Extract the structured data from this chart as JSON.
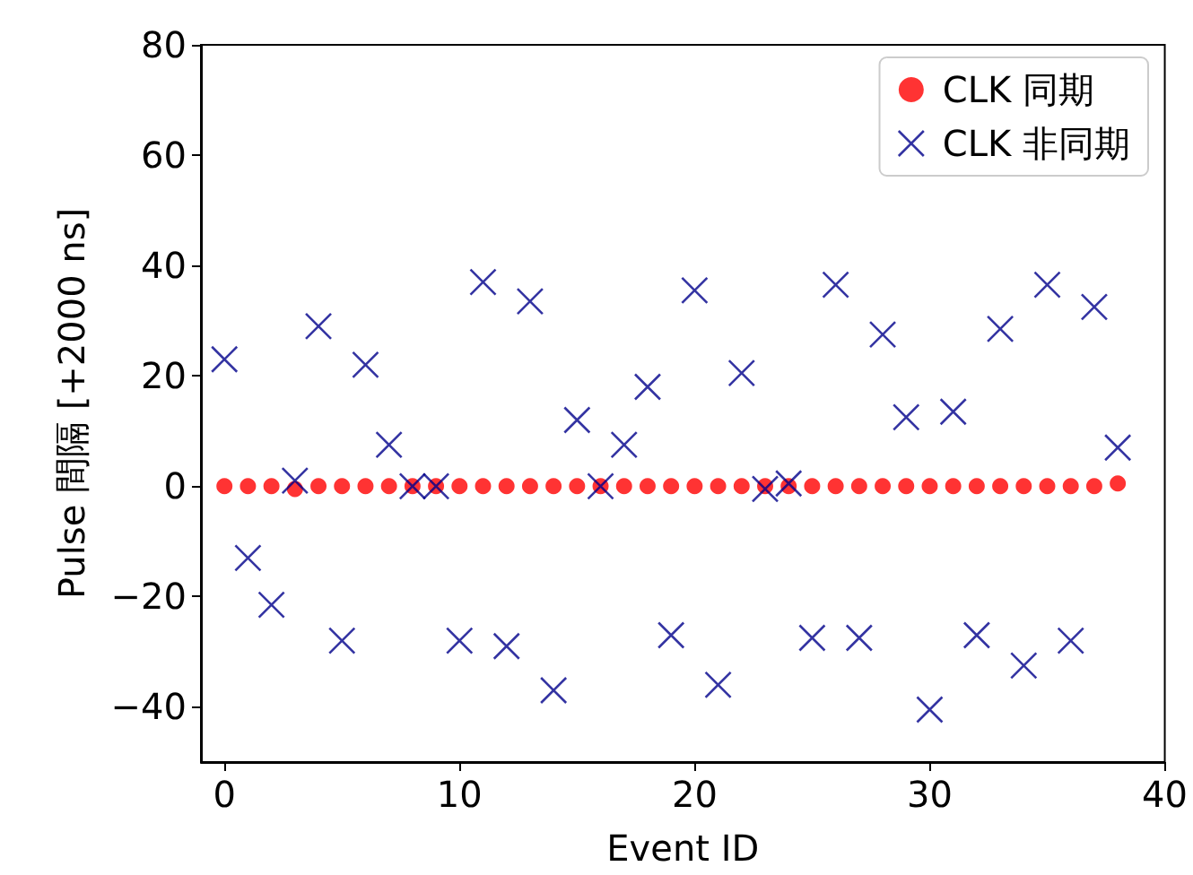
{
  "chart_data": {
    "type": "scatter",
    "xlabel": "Event ID",
    "ylabel": "Pulse 間隔 [+2000 ns]",
    "x": [
      0,
      1,
      2,
      3,
      4,
      5,
      6,
      7,
      8,
      9,
      10,
      11,
      12,
      13,
      14,
      15,
      16,
      17,
      18,
      19,
      20,
      21,
      22,
      23,
      24,
      25,
      26,
      27,
      28,
      29,
      30,
      31,
      32,
      33,
      34,
      35,
      36,
      37,
      38
    ],
    "series": [
      {
        "name": "CLK 同期",
        "color": "#ff0000",
        "marker": "circle",
        "values": [
          0,
          0,
          0,
          -0.5,
          0,
          0,
          0,
          0,
          0,
          0,
          0,
          0,
          0,
          0,
          0,
          0,
          0,
          0,
          0,
          0,
          0,
          0,
          0,
          0,
          0,
          0,
          0,
          0,
          0,
          0,
          0,
          0,
          0,
          0,
          0,
          0,
          0,
          0,
          0.5
        ]
      },
      {
        "name": "CLK 非同期",
        "color": "#00008b",
        "marker": "cross",
        "values": [
          23,
          -13,
          -21.5,
          1,
          29,
          -28,
          22,
          7.5,
          0,
          0,
          -28,
          37,
          -29,
          33.5,
          -37,
          12,
          0,
          7.5,
          18,
          -27,
          35.5,
          -36,
          20.5,
          -0.5,
          0.5,
          -27.5,
          36.5,
          -27.5,
          27.5,
          12.5,
          -40.5,
          13.5,
          -27,
          28.5,
          -32.5,
          36.5,
          -28,
          32.5,
          7
        ]
      }
    ],
    "xlim": [
      -1,
      40
    ],
    "xticks": [
      0,
      10,
      20,
      30,
      40
    ],
    "ylim": [
      -50,
      80
    ],
    "yticks": [
      {
        "value": -40,
        "label": "−40"
      },
      {
        "value": -20,
        "label": "−20"
      },
      0,
      20,
      40,
      60,
      80
    ],
    "legend": "top right",
    "grid": false
  }
}
